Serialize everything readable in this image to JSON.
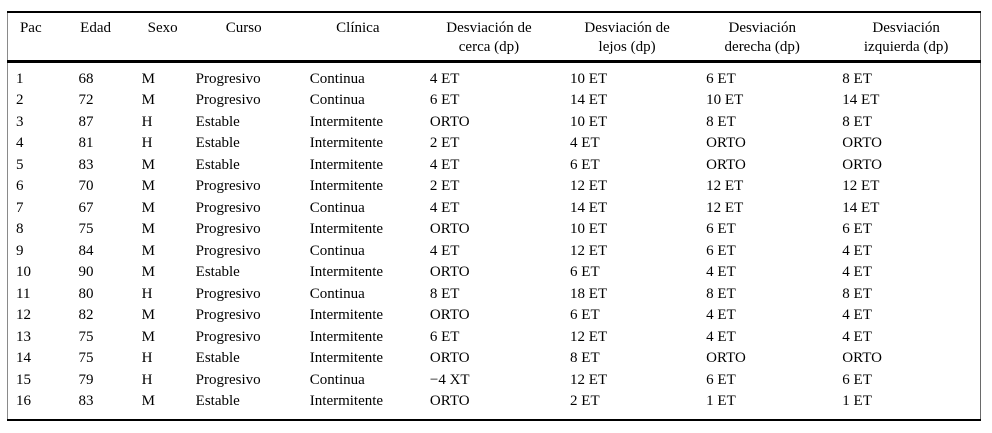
{
  "colors": {
    "text": "#000000",
    "background": "#ffffff",
    "rule": "#000000"
  },
  "table": {
    "columns": [
      {
        "id": "pac",
        "line1": "Pac",
        "line2": ""
      },
      {
        "id": "edad",
        "line1": "Edad",
        "line2": ""
      },
      {
        "id": "sexo",
        "line1": "Sexo",
        "line2": ""
      },
      {
        "id": "curso",
        "line1": "Curso",
        "line2": ""
      },
      {
        "id": "clinica",
        "line1": "Clínica",
        "line2": ""
      },
      {
        "id": "desviacion-cerca",
        "line1": "Desviación de",
        "line2": "cerca (dp)"
      },
      {
        "id": "desviacion-lejos",
        "line1": "Desviación de",
        "line2": "lejos (dp)"
      },
      {
        "id": "desviacion-derecha",
        "line1": "Desviación",
        "line2": "derecha (dp)"
      },
      {
        "id": "desviacion-izquierda",
        "line1": "Desviación",
        "line2": "izquierda (dp)"
      }
    ],
    "rows": [
      [
        "1",
        "68",
        "M",
        "Progresivo",
        "Continua",
        "4 ET",
        "10 ET",
        "6 ET",
        "8 ET"
      ],
      [
        "2",
        "72",
        "M",
        "Progresivo",
        "Continua",
        "6 ET",
        "14 ET",
        "10 ET",
        "14 ET"
      ],
      [
        "3",
        "87",
        "H",
        "Estable",
        "Intermitente",
        "ORTO",
        "10 ET",
        "8 ET",
        "8 ET"
      ],
      [
        "4",
        "81",
        "H",
        "Estable",
        "Intermitente",
        "2 ET",
        "4 ET",
        "ORTO",
        "ORTO"
      ],
      [
        "5",
        "83",
        "M",
        "Estable",
        "Intermitente",
        "4 ET",
        "6 ET",
        "ORTO",
        "ORTO"
      ],
      [
        "6",
        "70",
        "M",
        "Progresivo",
        "Intermitente",
        "2 ET",
        "12 ET",
        "12 ET",
        "12 ET"
      ],
      [
        "7",
        "67",
        "M",
        "Progresivo",
        "Continua",
        "4 ET",
        "14 ET",
        "12 ET",
        "14 ET"
      ],
      [
        "8",
        "75",
        "M",
        "Progresivo",
        "Intermitente",
        "ORTO",
        "10 ET",
        "6 ET",
        "6 ET"
      ],
      [
        "9",
        "84",
        "M",
        "Progresivo",
        "Continua",
        "4 ET",
        "12 ET",
        "6 ET",
        "4 ET"
      ],
      [
        "10",
        "90",
        "M",
        "Estable",
        "Intermitente",
        "ORTO",
        "6 ET",
        "4 ET",
        "4 ET"
      ],
      [
        "11",
        "80",
        "H",
        "Progresivo",
        "Continua",
        "8 ET",
        "18 ET",
        "8 ET",
        "8 ET"
      ],
      [
        "12",
        "82",
        "M",
        "Progresivo",
        "Intermitente",
        "ORTO",
        "6 ET",
        "4 ET",
        "4 ET"
      ],
      [
        "13",
        "75",
        "M",
        "Progresivo",
        "Intermitente",
        "6 ET",
        "12 ET",
        "4 ET",
        "4 ET"
      ],
      [
        "14",
        "75",
        "H",
        "Estable",
        "Intermitente",
        "ORTO",
        "8 ET",
        "ORTO",
        "ORTO"
      ],
      [
        "15",
        "79",
        "H",
        "Progresivo",
        "Continua",
        "−4 XT",
        "12 ET",
        "6 ET",
        "6 ET"
      ],
      [
        "16",
        "83",
        "M",
        "Estable",
        "Intermitente",
        "ORTO",
        "2 ET",
        "1 ET",
        "1 ET"
      ]
    ]
  }
}
